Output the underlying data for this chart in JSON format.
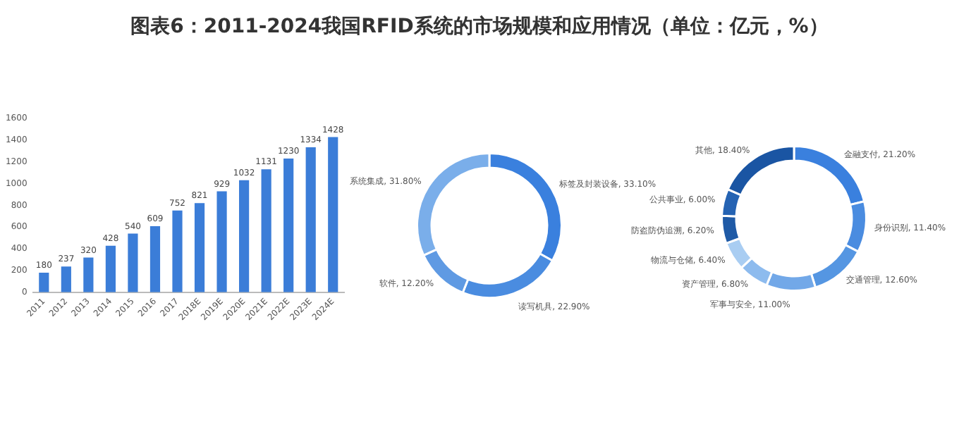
{
  "chart_data": [
    {
      "type": "bar",
      "title": "图表6：2011-2024我国RFID系统的市场规模和应用情况（单位：亿元，%）",
      "categories": [
        "2011",
        "2012",
        "2013",
        "2014",
        "2015",
        "2016",
        "2017",
        "2018E",
        "2019E",
        "2020E",
        "2021E",
        "2022E",
        "2023E",
        "2024E"
      ],
      "values": [
        180,
        237,
        320,
        428,
        540,
        609,
        752,
        821,
        929,
        1032,
        1131,
        1230,
        1334,
        1428
      ],
      "color": "#3b7dd8",
      "ylim": [
        0,
        1600
      ],
      "yticks": [
        0,
        200,
        400,
        600,
        800,
        1000,
        1200,
        1400,
        1600
      ],
      "data_labels": true
    },
    {
      "type": "donut",
      "categories": [
        "标签及封装设备",
        "读写机具",
        "软件",
        "系统集成"
      ],
      "values": [
        33.1,
        22.9,
        12.2,
        31.8
      ],
      "value_labels": [
        "33.10%",
        "22.90%",
        "12.20%",
        "31.80%"
      ],
      "colors": [
        "#3a80de",
        "#4a8ce0",
        "#5f9ae3",
        "#7aaeea"
      ]
    },
    {
      "type": "donut",
      "categories": [
        "金融支付",
        "身份识别",
        "交通管理",
        "军事与安全",
        "资产管理",
        "物流与仓储",
        "防盗防伪追溯",
        "公共事业",
        "其他"
      ],
      "values": [
        21.2,
        11.4,
        12.6,
        11.0,
        6.8,
        6.4,
        6.2,
        6.0,
        18.4
      ],
      "value_labels": [
        "21.20%",
        "11.40%",
        "12.60%",
        "11.00%",
        "6.80%",
        "6.40%",
        "6.20%",
        "6.00%",
        "18.40%"
      ],
      "colors": [
        "#3a80de",
        "#4a8ce0",
        "#5596e2",
        "#72a8e8",
        "#8dbbee",
        "#a9cdf2",
        "#1f5aa6",
        "#2563b3",
        "#1a55a3"
      ]
    }
  ]
}
